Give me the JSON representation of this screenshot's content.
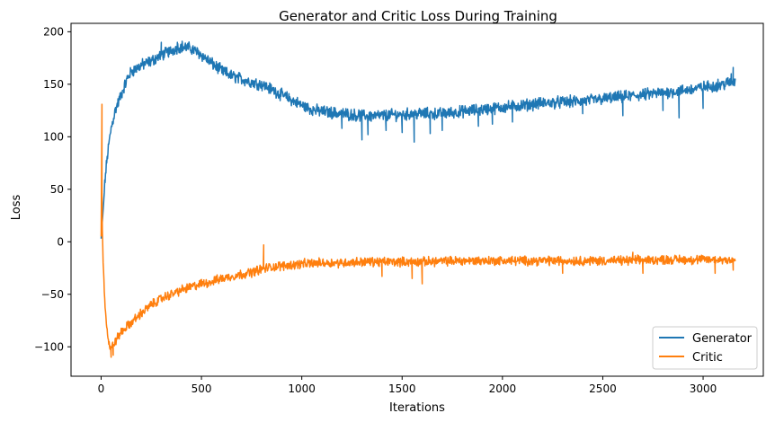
{
  "chart_data": {
    "type": "line",
    "title": "Generator and Critic Loss During Training",
    "xlabel": "Iterations",
    "ylabel": "Loss",
    "xlim": [
      -150,
      3300
    ],
    "ylim": [
      -128,
      208
    ],
    "xticks": [
      0,
      500,
      1000,
      1500,
      2000,
      2500,
      3000
    ],
    "yticks": [
      -100,
      -50,
      0,
      50,
      100,
      150,
      200
    ],
    "grid": false,
    "legend_position": "lower-right",
    "series": [
      {
        "name": "Generator",
        "color": "#1f77b4",
        "x": [
          0,
          10,
          20,
          30,
          40,
          50,
          70,
          100,
          130,
          150,
          200,
          250,
          300,
          350,
          380,
          400,
          450,
          500,
          550,
          600,
          650,
          700,
          750,
          800,
          850,
          900,
          950,
          1000,
          1050,
          1100,
          1150,
          1200,
          1250,
          1300,
          1350,
          1400,
          1450,
          1500,
          1550,
          1600,
          1650,
          1700,
          1750,
          1800,
          1850,
          1900,
          1950,
          2000,
          2100,
          2200,
          2300,
          2400,
          2500,
          2600,
          2700,
          2800,
          2900,
          3000,
          3100,
          3160
        ],
        "y": [
          3,
          30,
          60,
          80,
          95,
          108,
          125,
          140,
          155,
          162,
          168,
          172,
          178,
          182,
          185,
          186,
          184,
          178,
          170,
          163,
          158,
          155,
          152,
          150,
          145,
          140,
          135,
          130,
          126,
          124,
          123,
          122,
          121,
          120,
          120,
          120,
          121,
          121,
          122,
          122,
          122,
          122,
          123,
          124,
          125,
          126,
          127,
          128,
          130,
          132,
          133,
          134,
          136,
          138,
          140,
          142,
          144,
          147,
          150,
          153
        ],
        "noise": 4.5,
        "spikes": [
          [
            1200,
            108
          ],
          [
            1300,
            97
          ],
          [
            1330,
            102
          ],
          [
            1420,
            106
          ],
          [
            1500,
            104
          ],
          [
            1560,
            95
          ],
          [
            1640,
            103
          ],
          [
            1700,
            106
          ],
          [
            1880,
            110
          ],
          [
            1950,
            112
          ],
          [
            2050,
            114
          ],
          [
            2400,
            122
          ],
          [
            2600,
            120
          ],
          [
            2800,
            125
          ],
          [
            2880,
            118
          ],
          [
            3000,
            127
          ],
          [
            300,
            190
          ],
          [
            380,
            190
          ],
          [
            3150,
            166
          ],
          [
            3140,
            160
          ]
        ]
      },
      {
        "name": "Critic",
        "color": "#ff7f0e",
        "x": [
          0,
          3,
          5,
          10,
          20,
          30,
          40,
          50,
          60,
          80,
          100,
          150,
          200,
          250,
          300,
          350,
          400,
          450,
          500,
          550,
          600,
          650,
          700,
          750,
          800,
          850,
          900,
          1000,
          1100,
          1200,
          1300,
          1400,
          1500,
          1600,
          1800,
          2000,
          2200,
          2400,
          2600,
          2800,
          3000,
          3160
        ],
        "y": [
          5,
          80,
          20,
          -20,
          -60,
          -85,
          -98,
          -102,
          -98,
          -92,
          -86,
          -77,
          -68,
          -60,
          -54,
          -50,
          -46,
          -43,
          -40,
          -38,
          -35,
          -33,
          -31,
          -29,
          -26,
          -24,
          -23,
          -21,
          -20,
          -20,
          -19,
          -19,
          -19,
          -19,
          -18,
          -18,
          -18,
          -18,
          -18,
          -17,
          -17,
          -17
        ],
        "noise": 3.5,
        "spikes": [
          [
            4,
            131
          ],
          [
            50,
            -110
          ],
          [
            60,
            -108
          ],
          [
            810,
            -3
          ],
          [
            1600,
            -40
          ],
          [
            1550,
            -35
          ],
          [
            1400,
            -33
          ],
          [
            2300,
            -30
          ],
          [
            2650,
            -10
          ],
          [
            2700,
            -30
          ],
          [
            3060,
            -30
          ],
          [
            3150,
            -27
          ]
        ]
      }
    ]
  }
}
